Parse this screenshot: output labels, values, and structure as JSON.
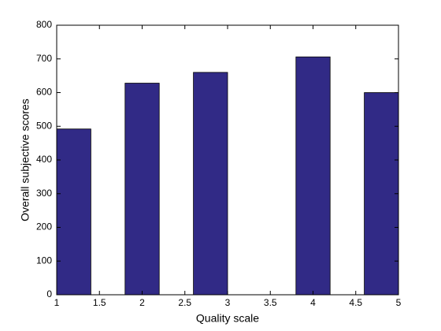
{
  "chart_data": {
    "type": "histogram",
    "xlabel": "Quality scale",
    "ylabel": "Overall subjective scores",
    "bins": [
      1,
      1.4,
      1.8,
      2.2,
      2.6,
      3.0,
      3.4,
      3.8,
      4.2,
      4.6,
      5.0
    ],
    "values": [
      492,
      0,
      628,
      0,
      660,
      0,
      0,
      706,
      0,
      600
    ],
    "color": "#312a86",
    "xlim": [
      1,
      5
    ],
    "xticks": [
      1,
      1.5,
      2,
      2.5,
      3,
      3.5,
      4,
      4.5,
      5
    ],
    "ylim": [
      0,
      800
    ],
    "yticks": [
      0,
      100,
      200,
      300,
      400,
      500,
      600,
      700,
      800
    ],
    "grid": false
  }
}
